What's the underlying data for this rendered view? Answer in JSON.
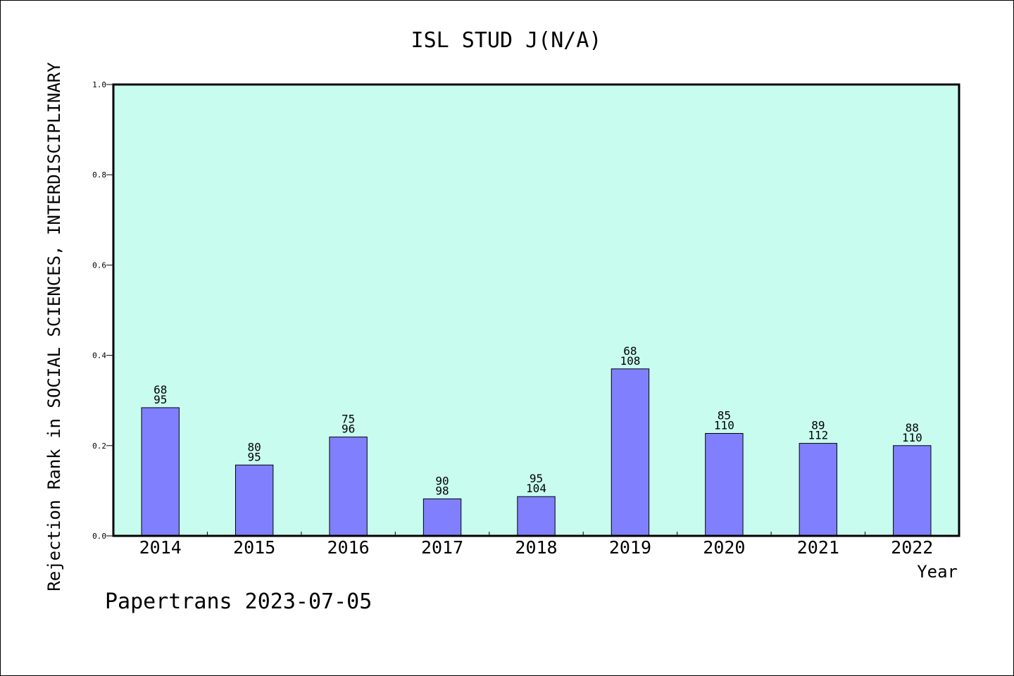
{
  "chart_data": {
    "type": "bar",
    "title": "ISL STUD J(N/A)",
    "xlabel": "Year",
    "ylabel": "Rejection Rank in SOCIAL SCIENCES, INTERDISCIPLINARY",
    "categories": [
      "2014",
      "2015",
      "2016",
      "2017",
      "2018",
      "2019",
      "2020",
      "2021",
      "2022"
    ],
    "values": [
      0.284,
      0.157,
      0.219,
      0.082,
      0.087,
      0.37,
      0.227,
      0.205,
      0.2
    ],
    "labels_top": [
      "68",
      "80",
      "75",
      "90",
      "95",
      "68",
      "85",
      "89",
      "88"
    ],
    "labels_bottom": [
      "95",
      "95",
      "96",
      "98",
      "104",
      "108",
      "110",
      "112",
      "110"
    ],
    "ylim": [
      0,
      1.0
    ],
    "yticks": [
      "0.0",
      "0.2",
      "0.4",
      "0.6",
      "0.8",
      "1.0"
    ],
    "grid": false,
    "colors": {
      "plot_background": "#c8fcee",
      "bar_fill": "#8080ff",
      "bar_stroke": "#000000"
    }
  },
  "footer": "Papertrans 2023-07-05"
}
